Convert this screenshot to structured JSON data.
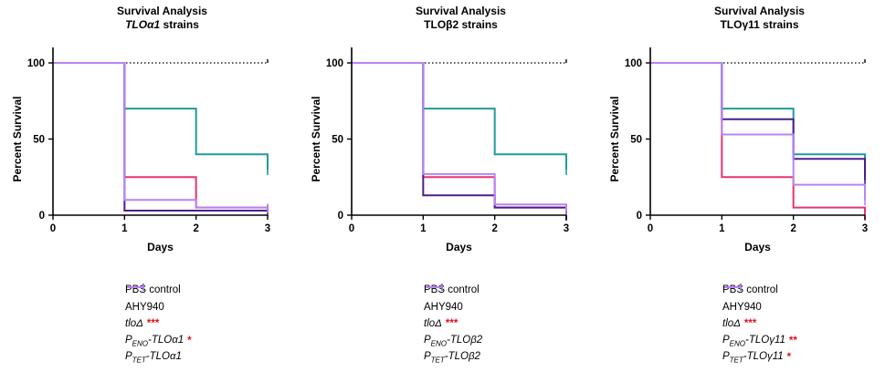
{
  "chart_data": [
    {
      "type": "step",
      "title": "Survival Analysis",
      "subtitle": "TLOα1 strains",
      "subtitle_italic_part": "TLOα1",
      "subtitle_rest": " strains",
      "xlabel": "Days",
      "ylabel": "Percent Survival",
      "xlim": [
        0,
        3
      ],
      "ylim": [
        0,
        100
      ],
      "xticks": [
        "0",
        "1",
        "2",
        "3"
      ],
      "yticks": [
        "0",
        "50",
        "100"
      ],
      "series": [
        {
          "name": "PBS control",
          "color": "#222222",
          "dashed": true,
          "x": [
            0,
            1,
            2,
            3
          ],
          "y": [
            100,
            100,
            100,
            100
          ]
        },
        {
          "name": "AHY940",
          "color": "#e8346c",
          "x": [
            0,
            1,
            2,
            3
          ],
          "y": [
            100,
            25,
            5,
            5
          ]
        },
        {
          "name": "tloΔ",
          "color": "#1f9a9a",
          "x": [
            0,
            1,
            2,
            3
          ],
          "y": [
            100,
            70,
            40,
            30
          ]
        },
        {
          "name": "PENO-TLOα1",
          "color": "#4b1e8c",
          "x": [
            0,
            1,
            2,
            3
          ],
          "y": [
            100,
            3,
            3,
            3
          ]
        },
        {
          "name": "PTET-TLOα1",
          "color": "#b784f2",
          "x": [
            0,
            1,
            2,
            3
          ],
          "y": [
            100,
            10,
            5,
            5
          ]
        }
      ],
      "legend": [
        {
          "label": "PBS control",
          "italic": false,
          "sig": ""
        },
        {
          "label": "AHY940",
          "italic": false,
          "sig": ""
        },
        {
          "label": "tloΔ",
          "italic": true,
          "sig": "***"
        },
        {
          "prefix": "P",
          "sub": "ENO",
          "suffix": "-TLOα1",
          "italic": true,
          "sig": "*"
        },
        {
          "prefix": "P",
          "sub": "TET",
          "suffix": "-TLOα1",
          "italic": true,
          "sig": ""
        }
      ]
    },
    {
      "type": "step",
      "title": "Survival Analysis",
      "subtitle": "TLOβ2 strains",
      "subtitle_italic_part": "",
      "subtitle_rest": "TLOβ2 strains",
      "xlabel": "Days",
      "ylabel": "Percent Survival",
      "xlim": [
        0,
        3
      ],
      "ylim": [
        0,
        100
      ],
      "xticks": [
        "0",
        "1",
        "2",
        "3"
      ],
      "yticks": [
        "0",
        "50",
        "100"
      ],
      "series": [
        {
          "name": "PBS control",
          "color": "#222222",
          "dashed": true,
          "x": [
            0,
            1,
            2,
            3
          ],
          "y": [
            100,
            100,
            100,
            100
          ]
        },
        {
          "name": "AHY940",
          "color": "#e8346c",
          "x": [
            0,
            1,
            2,
            3
          ],
          "y": [
            100,
            25,
            5,
            0
          ]
        },
        {
          "name": "tloΔ",
          "color": "#1f9a9a",
          "x": [
            0,
            1,
            2,
            3
          ],
          "y": [
            100,
            70,
            40,
            30
          ]
        },
        {
          "name": "PENO-TLOβ2",
          "color": "#4b1e8c",
          "x": [
            0,
            1,
            2,
            3
          ],
          "y": [
            100,
            13,
            5,
            0
          ]
        },
        {
          "name": "PTET-TLOβ2",
          "color": "#b784f2",
          "x": [
            0,
            1,
            2,
            3
          ],
          "y": [
            100,
            27,
            7,
            3
          ]
        }
      ],
      "legend": [
        {
          "label": "PBS control",
          "italic": false,
          "sig": ""
        },
        {
          "label": "AHY940",
          "italic": false,
          "sig": ""
        },
        {
          "label": "tloΔ",
          "italic": true,
          "sig": "***"
        },
        {
          "prefix": "P",
          "sub": "ENO",
          "suffix": "-TLOβ2",
          "italic": true,
          "sig": ""
        },
        {
          "prefix": "P",
          "sub": "TET",
          "suffix": "-TLOβ2",
          "italic": true,
          "sig": ""
        }
      ]
    },
    {
      "type": "step",
      "title": "Survival Analysis",
      "subtitle": "TLOγ11 strains",
      "subtitle_italic_part": "",
      "subtitle_rest": "TLOγ11 strains",
      "xlabel": "Days",
      "ylabel": "Percent Survival",
      "xlim": [
        0,
        3
      ],
      "ylim": [
        0,
        100
      ],
      "xticks": [
        "0",
        "1",
        "2",
        "3"
      ],
      "yticks": [
        "0",
        "50",
        "100"
      ],
      "series": [
        {
          "name": "PBS control",
          "color": "#222222",
          "dashed": true,
          "x": [
            0,
            1,
            2,
            3
          ],
          "y": [
            100,
            100,
            100,
            100
          ]
        },
        {
          "name": "AHY940",
          "color": "#e8346c",
          "x": [
            0,
            1,
            2,
            3
          ],
          "y": [
            100,
            25,
            5,
            0
          ]
        },
        {
          "name": "tloΔ",
          "color": "#1f9a9a",
          "x": [
            0,
            1,
            2,
            3
          ],
          "y": [
            100,
            70,
            40,
            33
          ]
        },
        {
          "name": "PENO-TLOγ11",
          "color": "#4b1e8c",
          "x": [
            0,
            1,
            2,
            3
          ],
          "y": [
            100,
            63,
            37,
            23
          ]
        },
        {
          "name": "PTET-TLOγ11",
          "color": "#b784f2",
          "x": [
            0,
            1,
            2,
            3
          ],
          "y": [
            100,
            53,
            20,
            10
          ]
        }
      ],
      "legend": [
        {
          "label": "PBS control",
          "italic": false,
          "sig": ""
        },
        {
          "label": "AHY940",
          "italic": false,
          "sig": ""
        },
        {
          "label": "tloΔ",
          "italic": true,
          "sig": "***"
        },
        {
          "prefix": "P",
          "sub": "ENO",
          "suffix": "-TLOγ11",
          "italic": true,
          "sig": "**"
        },
        {
          "prefix": "P",
          "sub": "TET",
          "suffix": "-TLOγ11",
          "italic": true,
          "sig": "*"
        }
      ]
    }
  ]
}
